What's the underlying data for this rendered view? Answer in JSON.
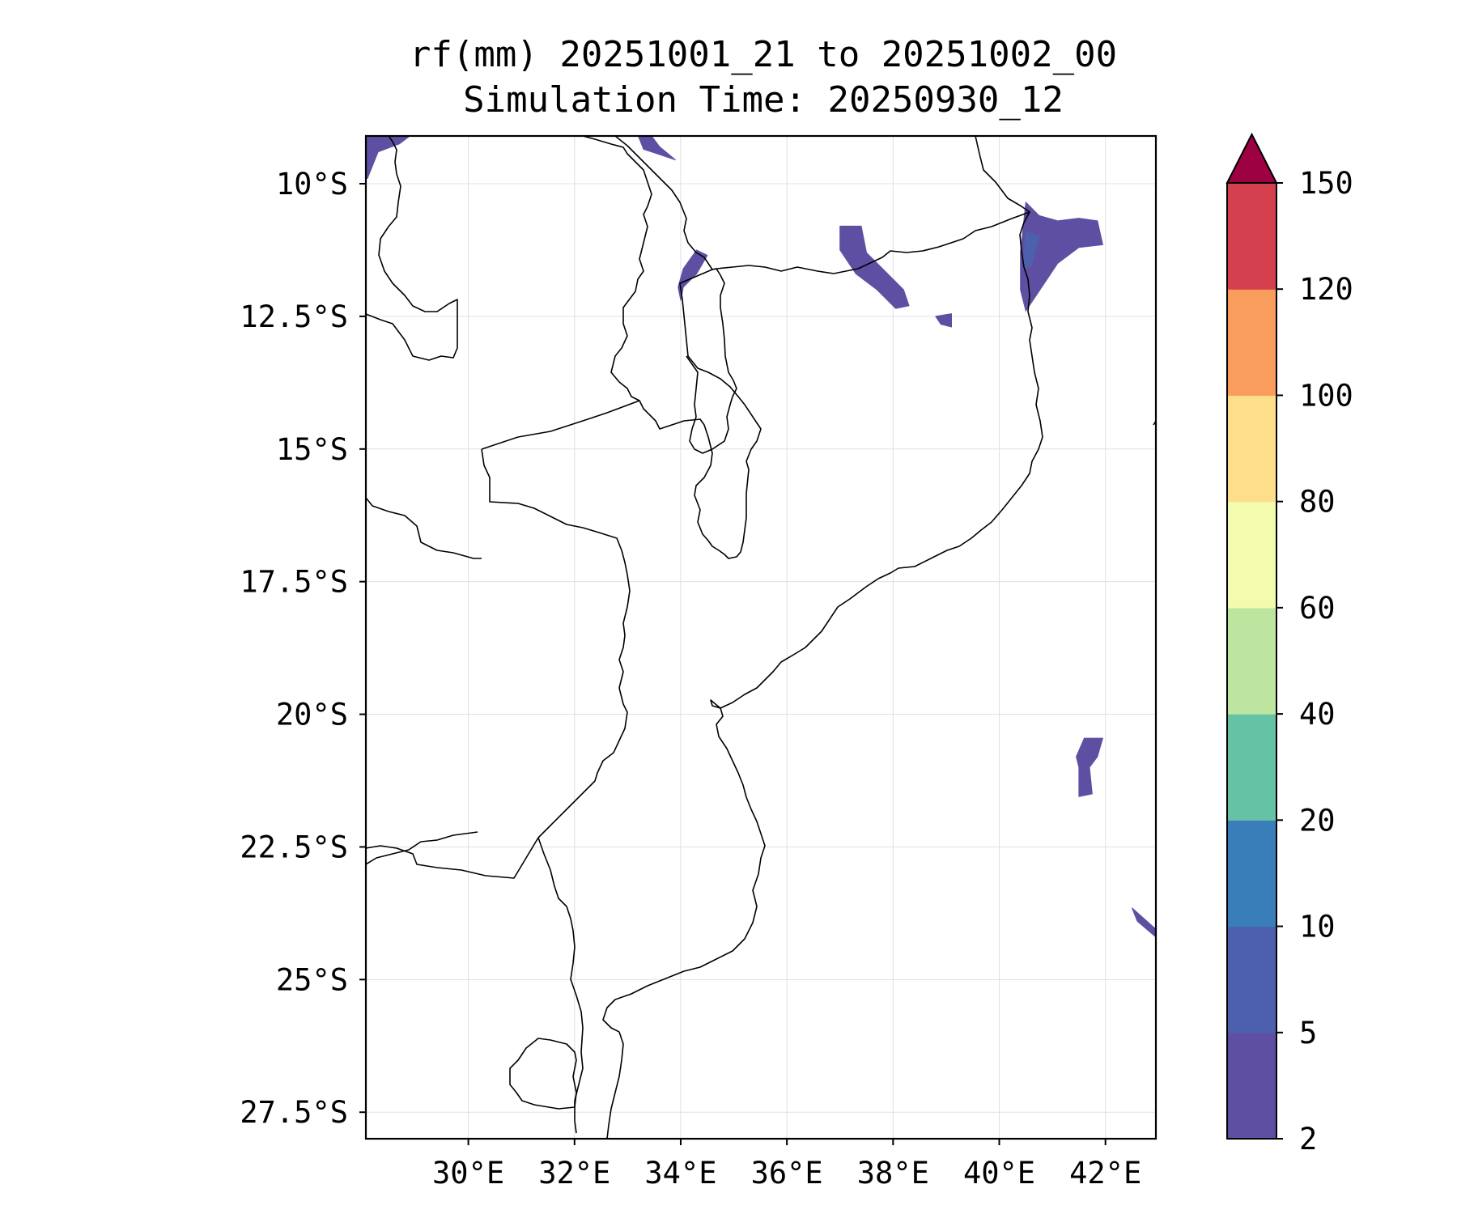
{
  "title": {
    "line1": "rf(mm) 20251001_21 to 20251002_00",
    "line2": "Simulation Time: 20250930_12"
  },
  "map": {
    "lon_range": [
      28.07,
      42.95
    ],
    "lat_range": [
      -28.0,
      -9.1
    ],
    "lat_ticks": [
      {
        "value": -10.0,
        "label": "10°S"
      },
      {
        "value": -12.5,
        "label": "12.5°S"
      },
      {
        "value": -15.0,
        "label": "15°S"
      },
      {
        "value": -17.5,
        "label": "17.5°S"
      },
      {
        "value": -20.0,
        "label": "20°S"
      },
      {
        "value": -22.5,
        "label": "22.5°S"
      },
      {
        "value": -25.0,
        "label": "25°S"
      },
      {
        "value": -27.5,
        "label": "27.5°S"
      }
    ],
    "lon_ticks": [
      {
        "value": 30,
        "label": "30°E"
      },
      {
        "value": 32,
        "label": "32°E"
      },
      {
        "value": 34,
        "label": "34°E"
      },
      {
        "value": 36,
        "label": "36°E"
      },
      {
        "value": 38,
        "label": "38°E"
      },
      {
        "value": 40,
        "label": "40°E"
      },
      {
        "value": 42,
        "label": "42°E"
      }
    ],
    "gridlines": true
  },
  "colorbar": {
    "levels": [
      2,
      5,
      10,
      20,
      40,
      60,
      80,
      100,
      120,
      150
    ],
    "colors": [
      "#5e4fa2",
      "#4d60ad",
      "#3a7eb9",
      "#66c2a5",
      "#bde5a0",
      "#f3fbae",
      "#fddf8b",
      "#f99d5c",
      "#d5404e"
    ],
    "extend_color": "#9e0142",
    "extend": "max"
  },
  "rain_areas": [
    {
      "name": "rain-area-nw-corner",
      "value_mm": 3,
      "points": [
        [
          28.07,
          -9.1
        ],
        [
          28.9,
          -9.1
        ],
        [
          28.7,
          -9.25
        ],
        [
          28.3,
          -9.4
        ],
        [
          28.1,
          -9.9
        ],
        [
          28.07,
          -9.9
        ]
      ]
    },
    {
      "name": "rain-area-north-lake-malawi",
      "value_mm": 3,
      "points": [
        [
          33.2,
          -9.1
        ],
        [
          33.45,
          -9.1
        ],
        [
          33.6,
          -9.3
        ],
        [
          33.9,
          -9.55
        ],
        [
          33.6,
          -9.45
        ],
        [
          33.3,
          -9.35
        ]
      ]
    },
    {
      "name": "rain-area-lake-malawi-west",
      "value_mm": 3,
      "points": [
        [
          34.3,
          -11.25
        ],
        [
          34.5,
          -11.35
        ],
        [
          34.3,
          -11.7
        ],
        [
          34.05,
          -11.95
        ],
        [
          34.0,
          -12.2
        ],
        [
          33.95,
          -11.95
        ],
        [
          34.05,
          -11.6
        ]
      ]
    },
    {
      "name": "rain-area-rovuma",
      "value_mm": 3,
      "points": [
        [
          37.0,
          -10.8
        ],
        [
          37.4,
          -10.8
        ],
        [
          37.5,
          -11.3
        ],
        [
          37.8,
          -11.6
        ],
        [
          38.2,
          -12.0
        ],
        [
          38.3,
          -12.3
        ],
        [
          38.05,
          -12.35
        ],
        [
          37.7,
          -12.0
        ],
        [
          37.3,
          -11.7
        ],
        [
          37.0,
          -11.25
        ]
      ]
    },
    {
      "name": "rain-area-niassa-small",
      "value_mm": 3,
      "points": [
        [
          38.8,
          -12.5
        ],
        [
          39.1,
          -12.45
        ],
        [
          39.1,
          -12.7
        ],
        [
          38.9,
          -12.65
        ]
      ]
    },
    {
      "name": "rain-area-cabo-delgado",
      "value_mm": 4,
      "points": [
        [
          40.5,
          -10.35
        ],
        [
          40.75,
          -10.6
        ],
        [
          41.1,
          -10.7
        ],
        [
          41.5,
          -10.65
        ],
        [
          41.85,
          -10.7
        ],
        [
          41.95,
          -11.15
        ],
        [
          41.5,
          -11.2
        ],
        [
          41.1,
          -11.5
        ],
        [
          40.7,
          -12.1
        ],
        [
          40.5,
          -12.4
        ],
        [
          40.4,
          -12.0
        ],
        [
          40.4,
          -11.3
        ]
      ]
    },
    {
      "name": "rain-area-cabo-delgado-inner",
      "value_mm": 7,
      "points": [
        [
          40.5,
          -10.9
        ],
        [
          40.75,
          -11.0
        ],
        [
          40.6,
          -11.55
        ],
        [
          40.45,
          -11.6
        ]
      ]
    },
    {
      "name": "rain-area-mozambique-channel",
      "value_mm": 3,
      "points": [
        [
          41.6,
          -20.45
        ],
        [
          41.95,
          -20.45
        ],
        [
          41.85,
          -20.8
        ],
        [
          41.7,
          -21.0
        ],
        [
          41.75,
          -21.5
        ],
        [
          41.5,
          -21.55
        ],
        [
          41.5,
          -21.0
        ],
        [
          41.45,
          -20.8
        ]
      ]
    },
    {
      "name": "rain-area-southeast-edge",
      "value_mm": 3,
      "points": [
        [
          42.5,
          -23.65
        ],
        [
          42.95,
          -24.05
        ],
        [
          42.95,
          -24.2
        ],
        [
          42.6,
          -23.9
        ]
      ]
    }
  ]
}
